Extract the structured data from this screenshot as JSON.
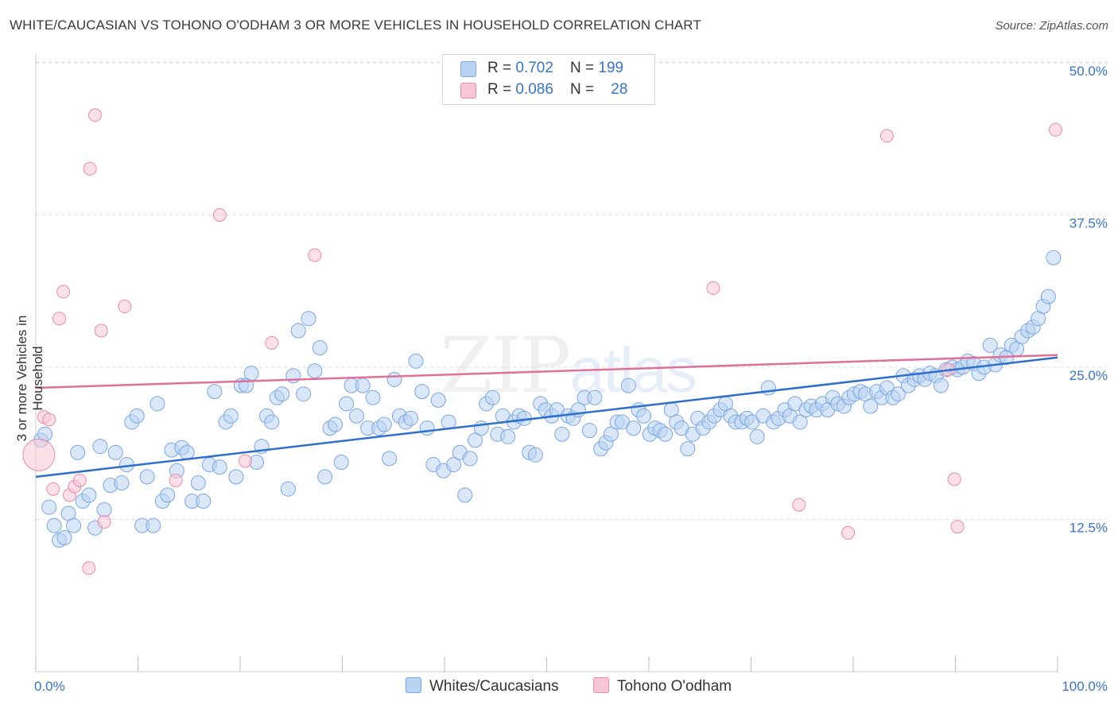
{
  "title": "WHITE/CAUCASIAN VS TOHONO O'ODHAM 3 OR MORE VEHICLES IN HOUSEHOLD CORRELATION CHART",
  "source": "Source: ZipAtlas.com",
  "watermark": {
    "zip": "ZIP",
    "atlas": "atlas"
  },
  "legend": [
    {
      "r_label": "R = ",
      "r_value": "0.702",
      "n_label": "N = ",
      "n_value": "199"
    },
    {
      "r_label": "R = ",
      "r_value": "0.086",
      "n_label": "N = ",
      "n_value": "28"
    }
  ],
  "colors": {
    "blue_fill": "#b9d3f3",
    "blue_stroke": "#7aa6e0",
    "blue_line": "#2f6fcc",
    "pink_fill": "#f8c7d6",
    "pink_stroke": "#e98aa8",
    "pink_line": "#e0709a",
    "tick_text": "#3a73c6",
    "grid": "#dddddd"
  },
  "chart_data": {
    "type": "scatter",
    "title": "WHITE/CAUCASIAN VS TOHONO O'ODHAM 3 OR MORE VEHICLES IN HOUSEHOLD CORRELATION CHART",
    "xlabel": "",
    "ylabel": "3 or more Vehicles in Household",
    "xlim": [
      0,
      100
    ],
    "ylim": [
      0,
      52
    ],
    "x_tick_labels": [
      "0.0%",
      "100.0%"
    ],
    "y_ticks": [
      12.5,
      25.0,
      37.5,
      50.0
    ],
    "y_tick_labels": [
      "12.5%",
      "25.0%",
      "37.5%",
      "50.0%"
    ],
    "grid": "horizontal dashed",
    "legend_placement": "top-center and bottom",
    "series": [
      {
        "name": "Whites/Caucasians",
        "r": 0.702,
        "n": 199,
        "trend": [
          [
            0,
            16.0
          ],
          [
            100,
            25.8
          ]
        ],
        "points": [
          [
            0.5,
            19.0
          ],
          [
            0.9,
            19.5
          ],
          [
            1.3,
            13.5
          ],
          [
            1.8,
            12.0
          ],
          [
            2.3,
            10.8
          ],
          [
            2.8,
            11.0
          ],
          [
            3.2,
            13.0
          ],
          [
            3.7,
            12.0
          ],
          [
            4.1,
            18.0
          ],
          [
            4.6,
            14.0
          ],
          [
            5.2,
            14.5
          ],
          [
            5.8,
            11.8
          ],
          [
            6.3,
            18.5
          ],
          [
            6.7,
            13.3
          ],
          [
            7.3,
            15.3
          ],
          [
            7.8,
            18.0
          ],
          [
            8.4,
            15.5
          ],
          [
            8.9,
            17.0
          ],
          [
            9.4,
            20.5
          ],
          [
            9.9,
            21.0
          ],
          [
            10.4,
            12.0
          ],
          [
            10.9,
            16.0
          ],
          [
            11.5,
            12.0
          ],
          [
            11.9,
            22.0
          ],
          [
            12.4,
            14.0
          ],
          [
            12.9,
            14.5
          ],
          [
            13.3,
            18.2
          ],
          [
            13.8,
            16.5
          ],
          [
            14.3,
            18.4
          ],
          [
            14.8,
            18.0
          ],
          [
            15.3,
            14.0
          ],
          [
            15.9,
            15.5
          ],
          [
            16.4,
            14.0
          ],
          [
            17.0,
            17.0
          ],
          [
            17.5,
            23.0
          ],
          [
            18.0,
            16.8
          ],
          [
            18.6,
            20.5
          ],
          [
            19.1,
            21.0
          ],
          [
            19.6,
            16.0
          ],
          [
            20.1,
            23.5
          ],
          [
            20.6,
            23.5
          ],
          [
            21.1,
            24.5
          ],
          [
            21.6,
            17.2
          ],
          [
            22.1,
            18.5
          ],
          [
            22.6,
            21.0
          ],
          [
            23.1,
            20.5
          ],
          [
            23.6,
            22.5
          ],
          [
            24.1,
            22.8
          ],
          [
            24.7,
            15.0
          ],
          [
            25.2,
            24.3
          ],
          [
            25.7,
            28.0
          ],
          [
            26.2,
            22.8
          ],
          [
            26.7,
            29.0
          ],
          [
            27.3,
            24.7
          ],
          [
            27.8,
            26.6
          ],
          [
            28.3,
            16.0
          ],
          [
            28.8,
            20.0
          ],
          [
            29.3,
            20.3
          ],
          [
            29.9,
            17.2
          ],
          [
            30.4,
            22.0
          ],
          [
            30.9,
            23.5
          ],
          [
            31.4,
            21.0
          ],
          [
            32.0,
            23.5
          ],
          [
            32.5,
            20.0
          ],
          [
            33.0,
            22.5
          ],
          [
            33.6,
            20.0
          ],
          [
            34.1,
            20.3
          ],
          [
            34.6,
            17.5
          ],
          [
            35.1,
            24.0
          ],
          [
            35.6,
            21.0
          ],
          [
            36.2,
            20.5
          ],
          [
            36.7,
            20.8
          ],
          [
            37.2,
            25.5
          ],
          [
            37.8,
            23.0
          ],
          [
            38.3,
            20.0
          ],
          [
            38.9,
            17.0
          ],
          [
            39.4,
            22.3
          ],
          [
            39.9,
            16.5
          ],
          [
            40.4,
            20.5
          ],
          [
            40.9,
            17.0
          ],
          [
            41.5,
            18.0
          ],
          [
            42.0,
            14.5
          ],
          [
            42.5,
            17.5
          ],
          [
            43.0,
            19.0
          ],
          [
            43.6,
            20.0
          ],
          [
            44.1,
            22.0
          ],
          [
            44.7,
            22.5
          ],
          [
            45.2,
            19.5
          ],
          [
            45.7,
            21.0
          ],
          [
            46.2,
            19.3
          ],
          [
            46.8,
            20.5
          ],
          [
            47.3,
            21.0
          ],
          [
            47.8,
            20.8
          ],
          [
            48.3,
            18.0
          ],
          [
            48.9,
            17.8
          ],
          [
            49.4,
            22.0
          ],
          [
            49.9,
            21.5
          ],
          [
            50.5,
            21.0
          ],
          [
            51.0,
            21.5
          ],
          [
            51.5,
            19.5
          ],
          [
            52.1,
            21.0
          ],
          [
            52.6,
            20.8
          ],
          [
            53.1,
            21.5
          ],
          [
            53.7,
            22.5
          ],
          [
            54.2,
            19.8
          ],
          [
            54.7,
            22.5
          ],
          [
            55.3,
            18.3
          ],
          [
            55.8,
            18.8
          ],
          [
            56.3,
            19.5
          ],
          [
            56.9,
            20.5
          ],
          [
            57.4,
            20.5
          ],
          [
            58.0,
            23.5
          ],
          [
            58.5,
            20.0
          ],
          [
            59.0,
            21.5
          ],
          [
            59.5,
            21.0
          ],
          [
            60.1,
            19.5
          ],
          [
            60.6,
            20.0
          ],
          [
            61.1,
            19.8
          ],
          [
            61.6,
            19.5
          ],
          [
            62.2,
            21.5
          ],
          [
            62.7,
            20.5
          ],
          [
            63.2,
            20.0
          ],
          [
            63.8,
            18.3
          ],
          [
            64.3,
            19.5
          ],
          [
            64.8,
            20.8
          ],
          [
            65.3,
            20.0
          ],
          [
            65.9,
            20.5
          ],
          [
            66.4,
            21.0
          ],
          [
            67.0,
            21.5
          ],
          [
            67.5,
            22.0
          ],
          [
            68.0,
            21.0
          ],
          [
            68.5,
            20.5
          ],
          [
            69.1,
            20.5
          ],
          [
            69.6,
            20.8
          ],
          [
            70.1,
            20.5
          ],
          [
            70.6,
            19.3
          ],
          [
            71.2,
            21.0
          ],
          [
            71.7,
            23.3
          ],
          [
            72.2,
            20.5
          ],
          [
            72.7,
            20.8
          ],
          [
            73.3,
            21.5
          ],
          [
            73.8,
            21.0
          ],
          [
            74.3,
            22.0
          ],
          [
            74.8,
            20.5
          ],
          [
            75.4,
            21.5
          ],
          [
            75.9,
            21.8
          ],
          [
            76.4,
            21.5
          ],
          [
            77.0,
            22.0
          ],
          [
            77.5,
            21.5
          ],
          [
            78.0,
            22.5
          ],
          [
            78.5,
            22.0
          ],
          [
            79.1,
            21.8
          ],
          [
            79.6,
            22.5
          ],
          [
            80.1,
            22.8
          ],
          [
            80.7,
            23.0
          ],
          [
            81.2,
            22.8
          ],
          [
            81.7,
            21.8
          ],
          [
            82.3,
            23.0
          ],
          [
            82.8,
            22.5
          ],
          [
            83.3,
            23.3
          ],
          [
            83.9,
            22.5
          ],
          [
            84.4,
            22.8
          ],
          [
            84.9,
            24.3
          ],
          [
            85.4,
            23.5
          ],
          [
            86.0,
            24.0
          ],
          [
            86.5,
            24.3
          ],
          [
            87.0,
            24.0
          ],
          [
            87.5,
            24.5
          ],
          [
            88.1,
            24.3
          ],
          [
            88.6,
            23.5
          ],
          [
            89.1,
            24.8
          ],
          [
            89.7,
            25.0
          ],
          [
            90.2,
            24.8
          ],
          [
            90.7,
            25.0
          ],
          [
            91.2,
            25.5
          ],
          [
            91.8,
            25.3
          ],
          [
            92.3,
            24.5
          ],
          [
            92.8,
            25.0
          ],
          [
            93.4,
            26.8
          ],
          [
            93.9,
            25.2
          ],
          [
            94.4,
            26.0
          ],
          [
            95.0,
            25.8
          ],
          [
            95.5,
            26.8
          ],
          [
            96.0,
            26.5
          ],
          [
            96.5,
            27.5
          ],
          [
            97.1,
            28.0
          ],
          [
            97.6,
            28.3
          ],
          [
            98.1,
            29.0
          ],
          [
            98.6,
            30.0
          ],
          [
            99.1,
            30.8
          ],
          [
            99.6,
            34.0
          ]
        ]
      },
      {
        "name": "Tohono O'odham",
        "r": 0.086,
        "n": 28,
        "trend": [
          [
            0,
            23.3
          ],
          [
            100,
            26.0
          ]
        ],
        "points": [
          [
            0.3,
            17.8
          ],
          [
            0.8,
            20.9
          ],
          [
            1.3,
            20.7
          ],
          [
            1.7,
            15.0
          ],
          [
            2.3,
            29.0
          ],
          [
            2.7,
            31.2
          ],
          [
            3.3,
            14.5
          ],
          [
            3.8,
            15.2
          ],
          [
            4.3,
            15.7
          ],
          [
            5.2,
            8.5
          ],
          [
            5.3,
            41.3
          ],
          [
            5.8,
            45.7
          ],
          [
            6.4,
            28.0
          ],
          [
            6.7,
            12.3
          ],
          [
            8.7,
            30.0
          ],
          [
            13.7,
            15.7
          ],
          [
            18.0,
            37.5
          ],
          [
            20.5,
            17.3
          ],
          [
            23.1,
            27.0
          ],
          [
            27.3,
            34.2
          ],
          [
            66.3,
            31.5
          ],
          [
            74.7,
            13.7
          ],
          [
            79.5,
            11.4
          ],
          [
            83.3,
            44.0
          ],
          [
            89.3,
            24.8
          ],
          [
            89.9,
            15.8
          ],
          [
            90.2,
            11.9
          ],
          [
            99.8,
            44.5
          ]
        ]
      }
    ]
  }
}
